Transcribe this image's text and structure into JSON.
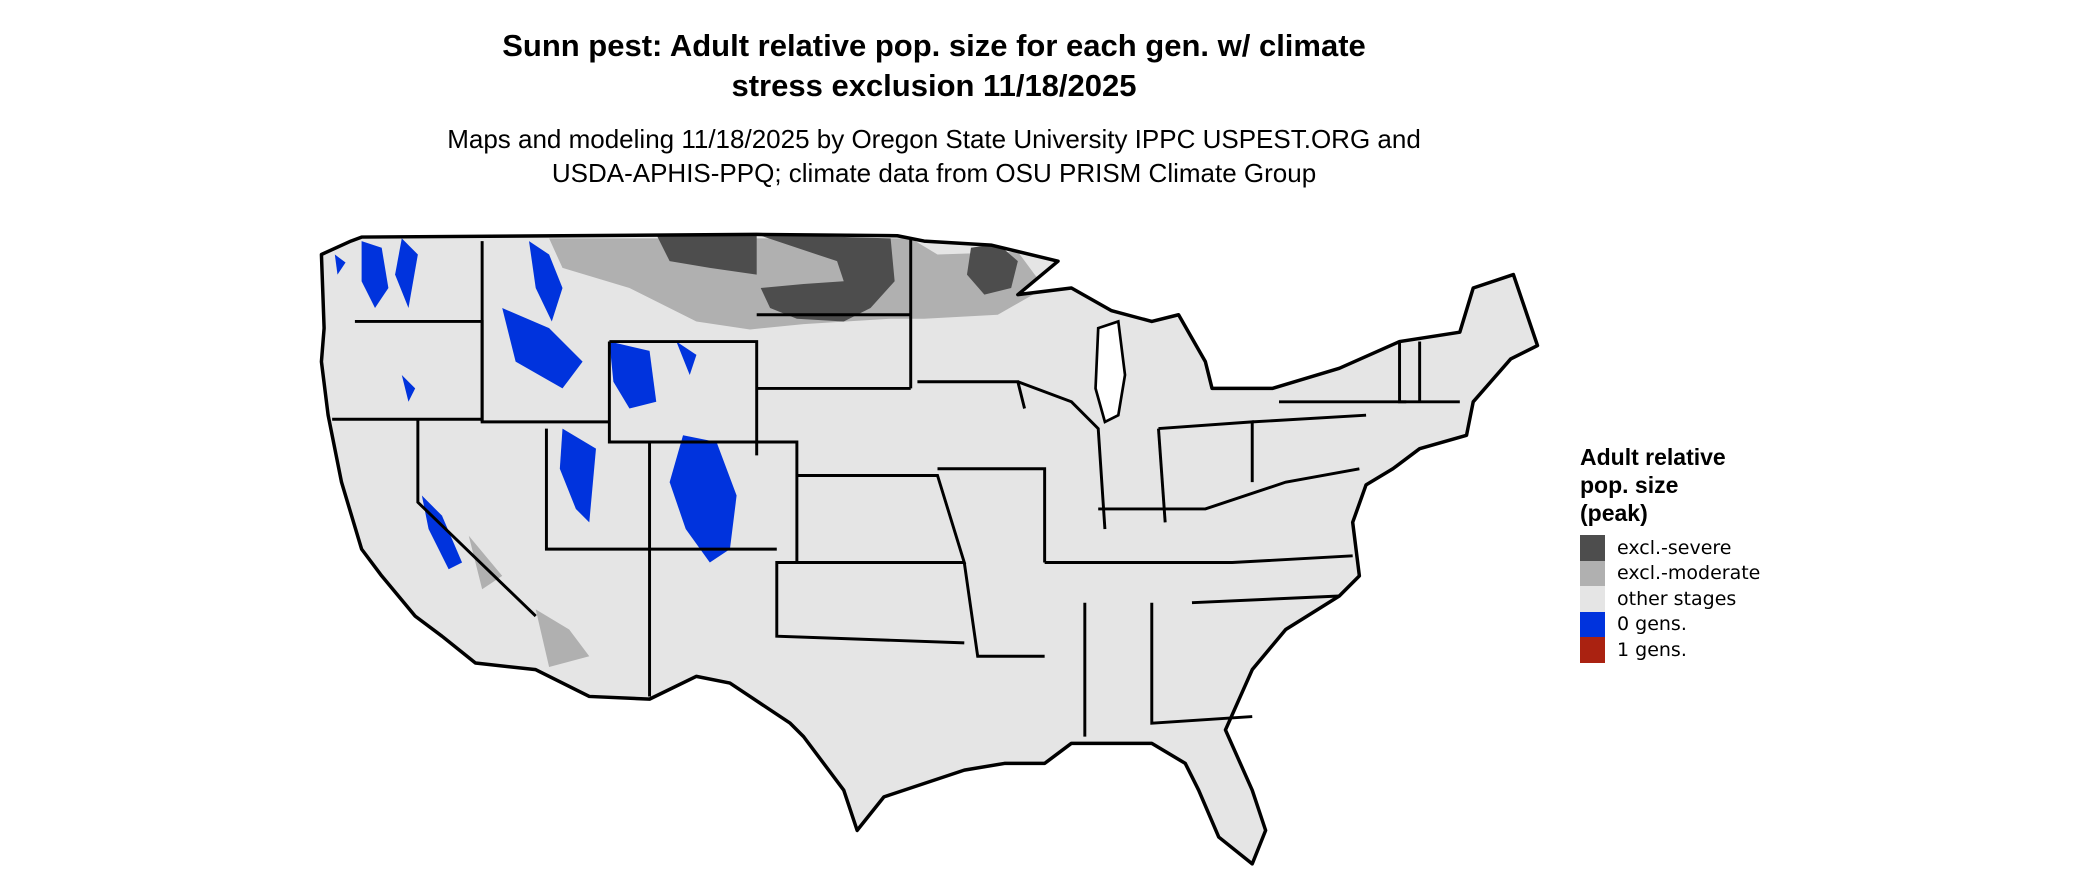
{
  "title": "Sunn pest: Adult relative pop. size for each gen. w/ climate stress exclusion 11/18/2025",
  "title_lines": [
    "Sunn pest: Adult relative pop. size for each gen. w/ climate",
    "stress exclusion 11/18/2025"
  ],
  "subtitle_lines": [
    "Maps and modeling 11/18/2025 by Oregon State University IPPC USPEST.ORG and",
    "USDA-APHIS-PPQ; climate data from OSU PRISM Climate Group"
  ],
  "legend": {
    "title_lines": [
      "Adult relative",
      "pop. size",
      "(peak)"
    ],
    "items": [
      {
        "label": "excl.-severe",
        "color": "#4d4d4d"
      },
      {
        "label": "excl.-moderate",
        "color": "#b0b0b0"
      },
      {
        "label": "other stages",
        "color": "#e5e5e5"
      },
      {
        "label": "0 gens.",
        "color": "#0033dd"
      },
      {
        "label": "1 gens.",
        "color": "#aa2211"
      }
    ]
  }
}
